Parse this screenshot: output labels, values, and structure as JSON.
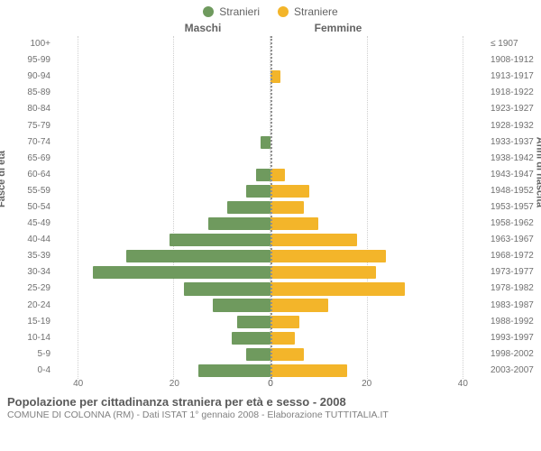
{
  "legend": {
    "male": {
      "label": "Stranieri",
      "color": "#6f9a5e"
    },
    "female": {
      "label": "Straniere",
      "color": "#f3b52a"
    }
  },
  "panel_titles": {
    "left": "Maschi",
    "right": "Femmine"
  },
  "axis_titles": {
    "left": "Fasce di età",
    "right": "Anni di nascita"
  },
  "chart": {
    "type": "population-pyramid",
    "xlim": 45,
    "xticks": [
      0,
      20,
      40
    ],
    "grid_color": "#cfcfcf",
    "center_color": "#909090",
    "background_color": "#ffffff",
    "bar_color_left": "#6f9a5e",
    "bar_color_right": "#f3b52a",
    "rows": [
      {
        "age": "100+",
        "birth": "≤ 1907",
        "m": 0,
        "f": 0
      },
      {
        "age": "95-99",
        "birth": "1908-1912",
        "m": 0,
        "f": 0
      },
      {
        "age": "90-94",
        "birth": "1913-1917",
        "m": 0,
        "f": 2
      },
      {
        "age": "85-89",
        "birth": "1918-1922",
        "m": 0,
        "f": 0
      },
      {
        "age": "80-84",
        "birth": "1923-1927",
        "m": 0,
        "f": 0
      },
      {
        "age": "75-79",
        "birth": "1928-1932",
        "m": 0,
        "f": 0
      },
      {
        "age": "70-74",
        "birth": "1933-1937",
        "m": 2,
        "f": 0
      },
      {
        "age": "65-69",
        "birth": "1938-1942",
        "m": 0,
        "f": 0
      },
      {
        "age": "60-64",
        "birth": "1943-1947",
        "m": 3,
        "f": 3
      },
      {
        "age": "55-59",
        "birth": "1948-1952",
        "m": 5,
        "f": 8
      },
      {
        "age": "50-54",
        "birth": "1953-1957",
        "m": 9,
        "f": 7
      },
      {
        "age": "45-49",
        "birth": "1958-1962",
        "m": 13,
        "f": 10
      },
      {
        "age": "40-44",
        "birth": "1963-1967",
        "m": 21,
        "f": 18
      },
      {
        "age": "35-39",
        "birth": "1968-1972",
        "m": 30,
        "f": 24
      },
      {
        "age": "30-34",
        "birth": "1973-1977",
        "m": 37,
        "f": 22
      },
      {
        "age": "25-29",
        "birth": "1978-1982",
        "m": 18,
        "f": 28
      },
      {
        "age": "20-24",
        "birth": "1983-1987",
        "m": 12,
        "f": 12
      },
      {
        "age": "15-19",
        "birth": "1988-1992",
        "m": 7,
        "f": 6
      },
      {
        "age": "10-14",
        "birth": "1993-1997",
        "m": 8,
        "f": 5
      },
      {
        "age": "5-9",
        "birth": "1998-2002",
        "m": 5,
        "f": 7
      },
      {
        "age": "0-4",
        "birth": "2003-2007",
        "m": 15,
        "f": 16
      }
    ]
  },
  "footer": {
    "title": "Popolazione per cittadinanza straniera per età e sesso - 2008",
    "subtitle": "COMUNE DI COLONNA (RM) - Dati ISTAT 1° gennaio 2008 - Elaborazione TUTTITALIA.IT"
  }
}
